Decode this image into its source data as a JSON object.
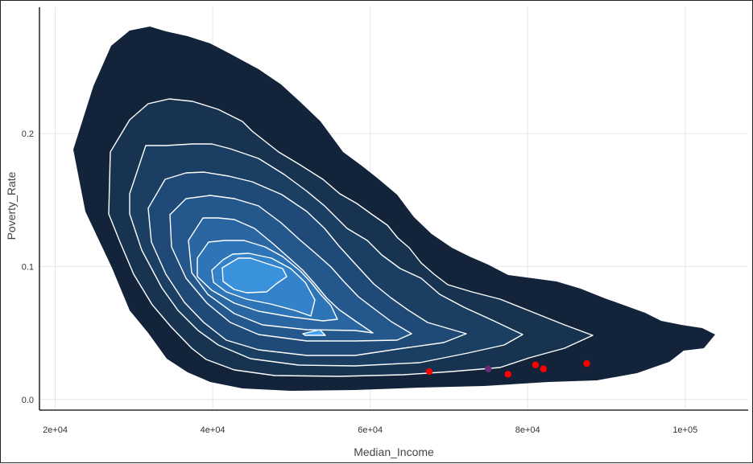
{
  "chart_data": {
    "type": "contour-density",
    "xlabel": "Median_Income",
    "ylabel": "Poverty_Rate",
    "xlim": [
      18000,
      108000
    ],
    "ylim": [
      -0.008,
      0.295
    ],
    "x_ticks": [
      {
        "value": 20000,
        "label": "2e+04"
      },
      {
        "value": 40000,
        "label": "4e+04"
      },
      {
        "value": 60000,
        "label": "6e+04"
      },
      {
        "value": 80000,
        "label": "8e+04"
      },
      {
        "value": 100000,
        "label": "1e+05"
      }
    ],
    "y_ticks": [
      {
        "value": 0.0,
        "label": "0.0"
      },
      {
        "value": 0.1,
        "label": "0.1"
      },
      {
        "value": 0.2,
        "label": "0.2"
      }
    ],
    "grid": true,
    "contour_fill_colors": [
      "#13243a",
      "#173350",
      "#1b3e63",
      "#1f4a77",
      "#24588c",
      "#2966a2",
      "#2e75b8",
      "#3483ca",
      "#3a92dc",
      "#44a2f0"
    ],
    "contour_line_color": "#ffffff",
    "points": [
      {
        "x": 67500,
        "y": 0.021,
        "color": "#ff0000"
      },
      {
        "x": 75000,
        "y": 0.023,
        "color": "#6b2a7a"
      },
      {
        "x": 77500,
        "y": 0.019,
        "color": "#ff0000"
      },
      {
        "x": 81000,
        "y": 0.026,
        "color": "#ff0000"
      },
      {
        "x": 82000,
        "y": 0.023,
        "color": "#ff0000"
      },
      {
        "x": 87500,
        "y": 0.027,
        "color": "#ff0000"
      }
    ]
  }
}
